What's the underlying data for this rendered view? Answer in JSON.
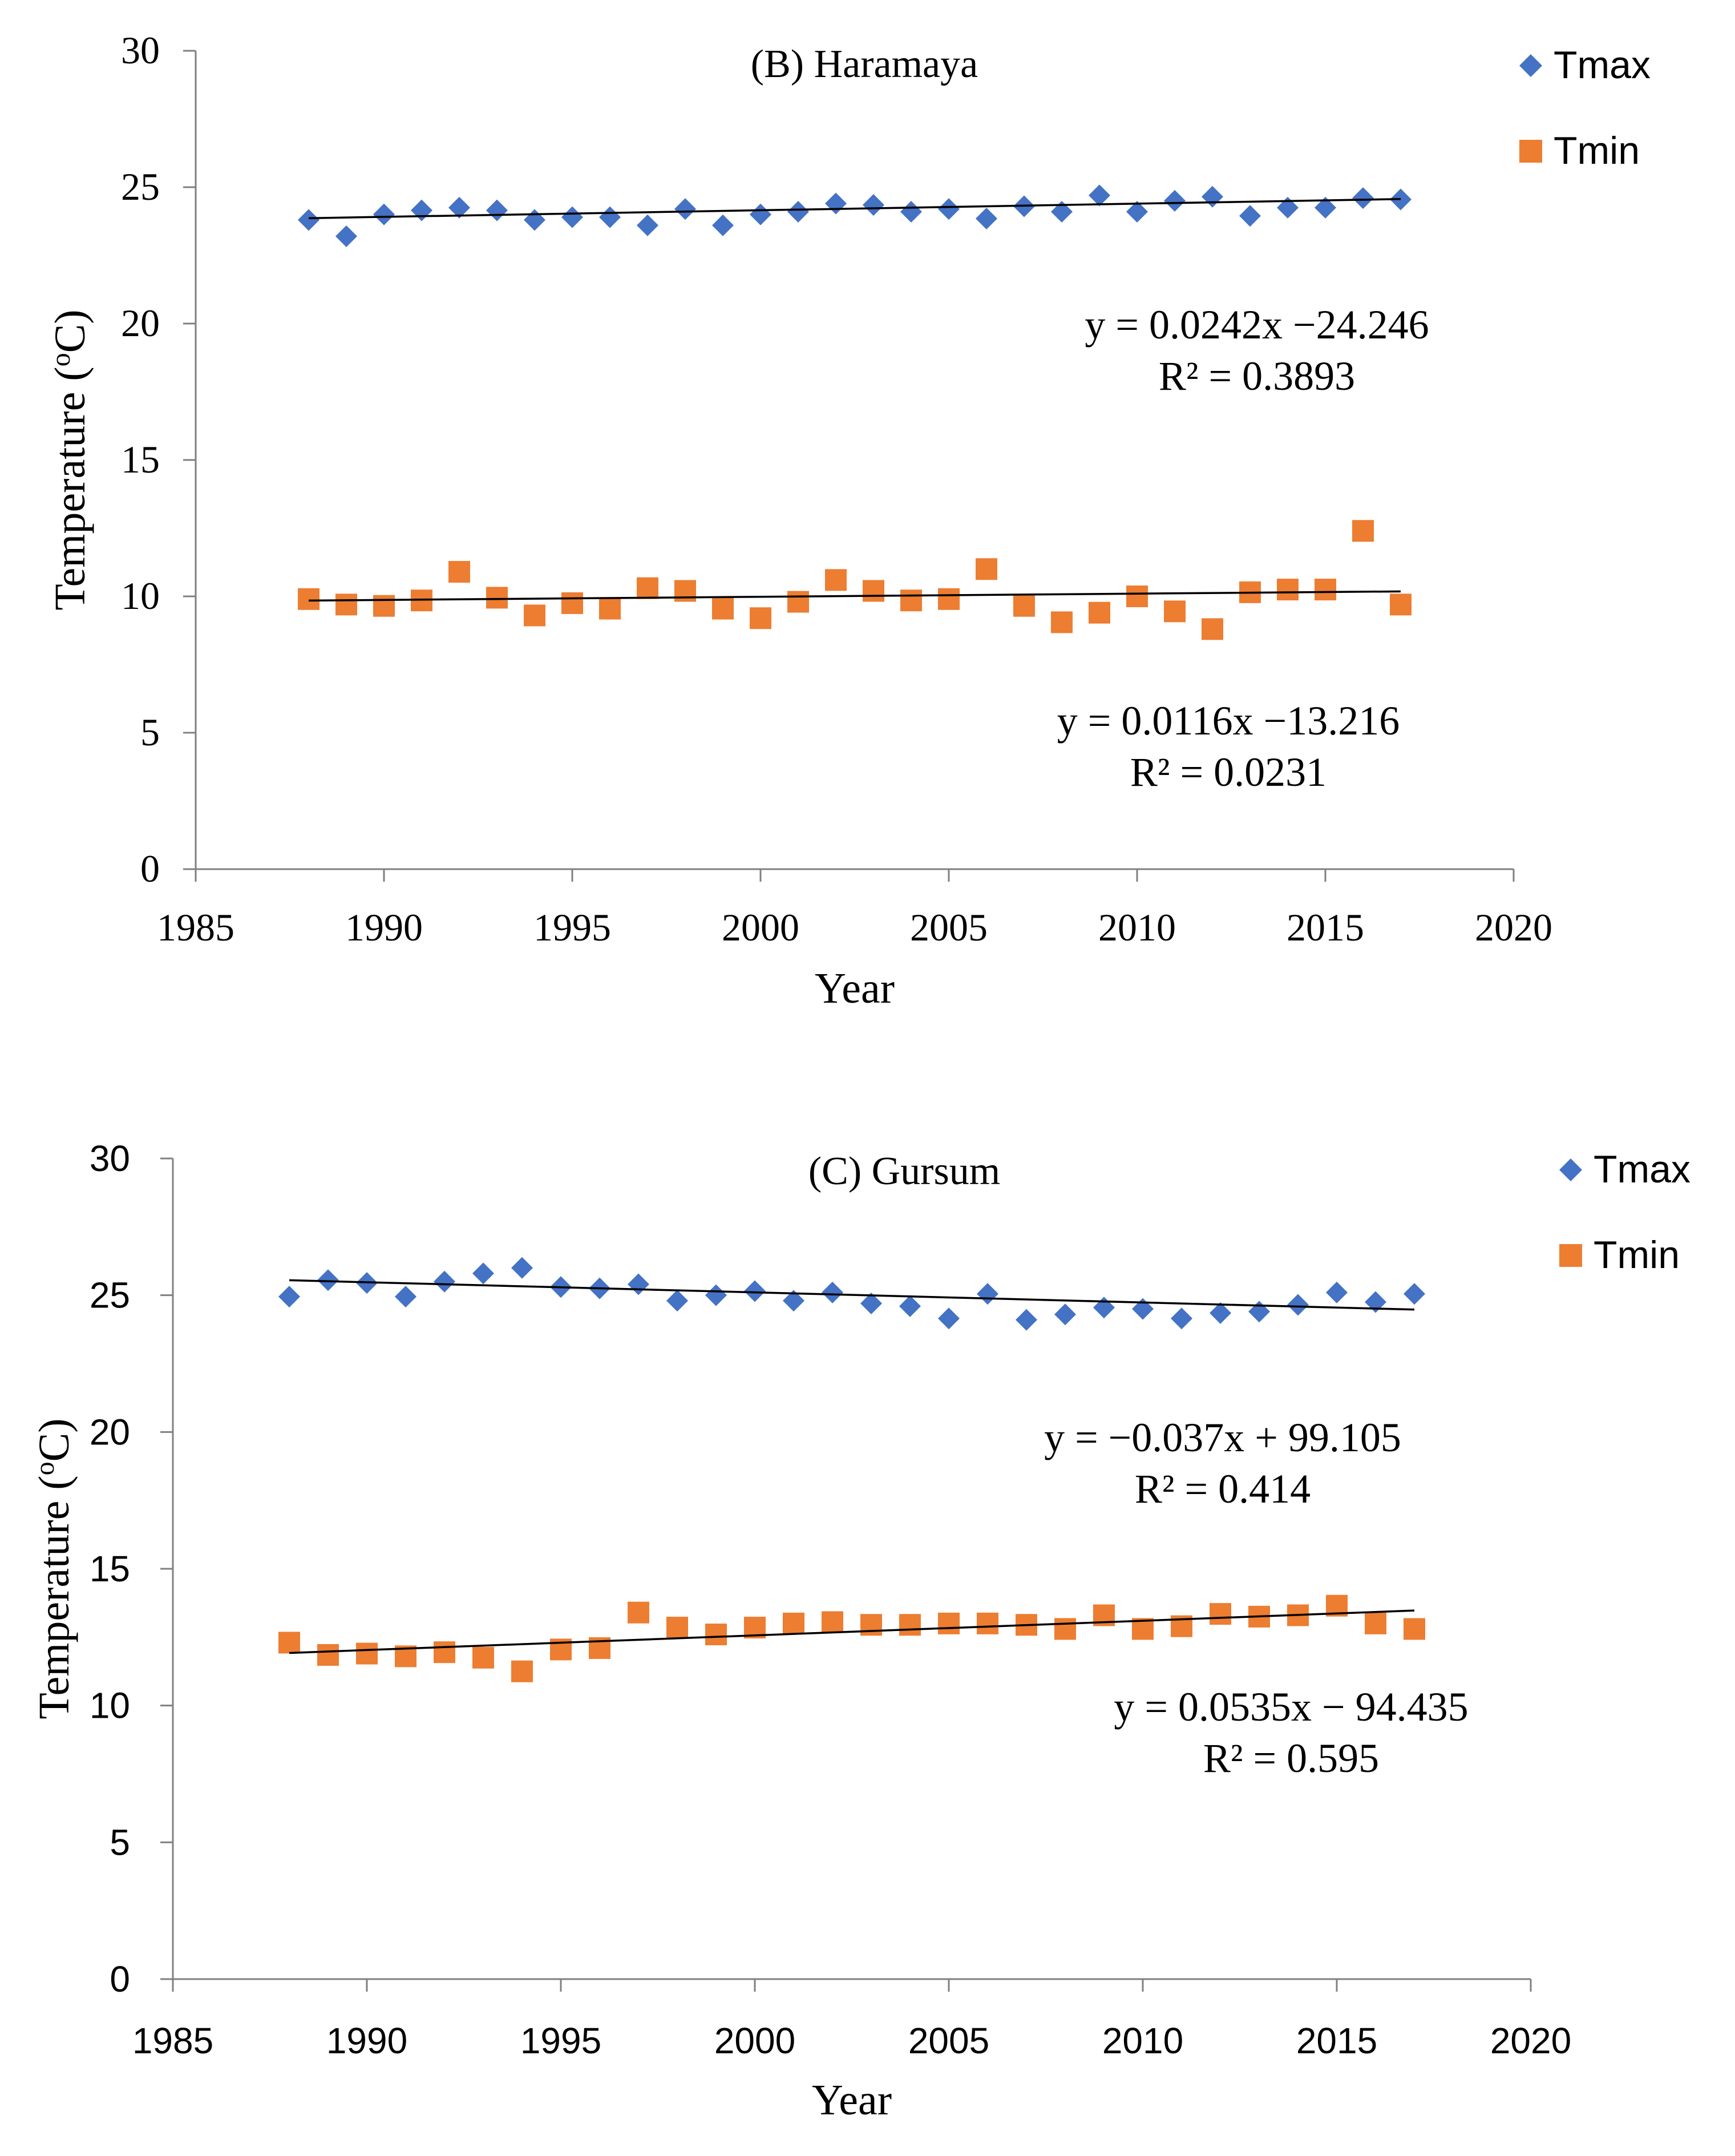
{
  "chart_data": [
    {
      "type": "scatter",
      "title": "(B) Haramaya",
      "xlabel": "Year",
      "ylabel_main": "Temperature (",
      "ylabel_sup": "o",
      "ylabel_end": "C)",
      "xlim": [
        1985,
        2020
      ],
      "ylim": [
        0,
        30
      ],
      "xticks": [
        "1985",
        "1990",
        "1995",
        "2000",
        "2005",
        "2010",
        "2015",
        "2020"
      ],
      "yticks": [
        "0",
        "5",
        "10",
        "15",
        "20",
        "25",
        "30"
      ],
      "legend_position": "top-right",
      "series": [
        {
          "name": "Tmax",
          "marker": "diamond",
          "color": "#4472C4",
          "x": [
            1988,
            1989,
            1990,
            1991,
            1992,
            1993,
            1994,
            1995,
            1996,
            1997,
            1998,
            1999,
            2000,
            2001,
            2002,
            2003,
            2004,
            2005,
            2006,
            2007,
            2008,
            2009,
            2010,
            2011,
            2012,
            2013,
            2014,
            2015,
            2016,
            2017
          ],
          "y": [
            23.8,
            23.2,
            24.0,
            24.15,
            24.25,
            24.15,
            23.8,
            23.9,
            23.9,
            23.6,
            24.2,
            23.6,
            24.0,
            24.1,
            24.4,
            24.35,
            24.1,
            24.2,
            23.85,
            24.3,
            24.1,
            24.7,
            24.1,
            24.5,
            24.65,
            23.95,
            24.25,
            24.25,
            24.6,
            24.55
          ],
          "trend": {
            "equation": "y = 0.0242x −24.246",
            "r2": "R² = 0.3893",
            "x0": 1988,
            "x1": 2017,
            "slope": 0.0242,
            "intercept": -24.246
          }
        },
        {
          "name": "Tmin",
          "marker": "square",
          "color": "#ED7D31",
          "x": [
            1988,
            1989,
            1990,
            1991,
            1992,
            1993,
            1994,
            1995,
            1996,
            1997,
            1998,
            1999,
            2000,
            2001,
            2002,
            2003,
            2004,
            2005,
            2006,
            2007,
            2008,
            2009,
            2010,
            2011,
            2012,
            2013,
            2014,
            2015,
            2016,
            2017
          ],
          "y": [
            9.9,
            9.7,
            9.65,
            9.85,
            10.9,
            9.95,
            9.3,
            9.75,
            9.55,
            10.3,
            10.2,
            9.55,
            9.2,
            9.8,
            10.6,
            10.2,
            9.85,
            9.9,
            11.0,
            9.65,
            9.05,
            9.4,
            10.0,
            9.45,
            8.8,
            10.15,
            10.25,
            10.25,
            12.4,
            9.7
          ],
          "trend": {
            "equation": "y = 0.0116x −13.216",
            "r2": "R² = 0.0231",
            "x0": 1988,
            "x1": 2017,
            "slope": 0.0116,
            "intercept": -13.216
          }
        }
      ]
    },
    {
      "type": "scatter",
      "title": "(C) Gursum",
      "xlabel": "Year",
      "ylabel_main": "Temperature (",
      "ylabel_sup": "o",
      "ylabel_end": "C)",
      "xlim": [
        1985,
        2020
      ],
      "ylim": [
        0,
        30
      ],
      "xticks": [
        "1985",
        "1990",
        "1995",
        "2000",
        "2005",
        "2010",
        "2015",
        "2020"
      ],
      "yticks": [
        "0",
        "5",
        "10",
        "15",
        "20",
        "25",
        "30"
      ],
      "legend_position": "top-right",
      "series": [
        {
          "name": "Tmax",
          "marker": "diamond",
          "color": "#4472C4",
          "x": [
            1988,
            1989,
            1990,
            1991,
            1992,
            1993,
            1994,
            1995,
            1996,
            1997,
            1998,
            1999,
            2000,
            2001,
            2002,
            2003,
            2004,
            2005,
            2006,
            2007,
            2008,
            2009,
            2010,
            2011,
            2012,
            2013,
            2014,
            2015,
            2016,
            2017
          ],
          "y": [
            24.95,
            25.55,
            25.45,
            24.95,
            25.5,
            25.8,
            26.0,
            25.3,
            25.25,
            25.4,
            24.8,
            25.0,
            25.15,
            24.8,
            25.1,
            24.7,
            24.6,
            24.15,
            25.05,
            24.1,
            24.3,
            24.55,
            24.5,
            24.15,
            24.35,
            24.4,
            24.65,
            25.1,
            24.75,
            25.05
          ],
          "trend": {
            "equation": "y = −0.037x + 99.105",
            "r2": "R² = 0.414",
            "x0": 1988,
            "x1": 2017,
            "slope": -0.037,
            "intercept": 99.105
          }
        },
        {
          "name": "Tmin",
          "marker": "square",
          "color": "#ED7D31",
          "x": [
            1988,
            1989,
            1990,
            1991,
            1992,
            1993,
            1994,
            1995,
            1996,
            1997,
            1998,
            1999,
            2000,
            2001,
            2002,
            2003,
            2004,
            2005,
            2006,
            2007,
            2008,
            2009,
            2010,
            2011,
            2012,
            2013,
            2014,
            2015,
            2016,
            2017
          ],
          "y": [
            12.3,
            11.85,
            11.9,
            11.8,
            11.95,
            11.75,
            11.25,
            12.05,
            12.1,
            13.4,
            12.85,
            12.6,
            12.85,
            13.0,
            13.05,
            12.95,
            12.95,
            13.0,
            13.0,
            12.95,
            12.8,
            13.3,
            12.8,
            12.9,
            13.35,
            13.25,
            13.3,
            13.65,
            13.0,
            12.8
          ],
          "trend": {
            "equation": "y = 0.0535x − 94.435",
            "r2": "R² = 0.595",
            "x0": 1988,
            "x1": 2017,
            "slope": 0.0535,
            "intercept": -94.435
          }
        }
      ]
    }
  ]
}
